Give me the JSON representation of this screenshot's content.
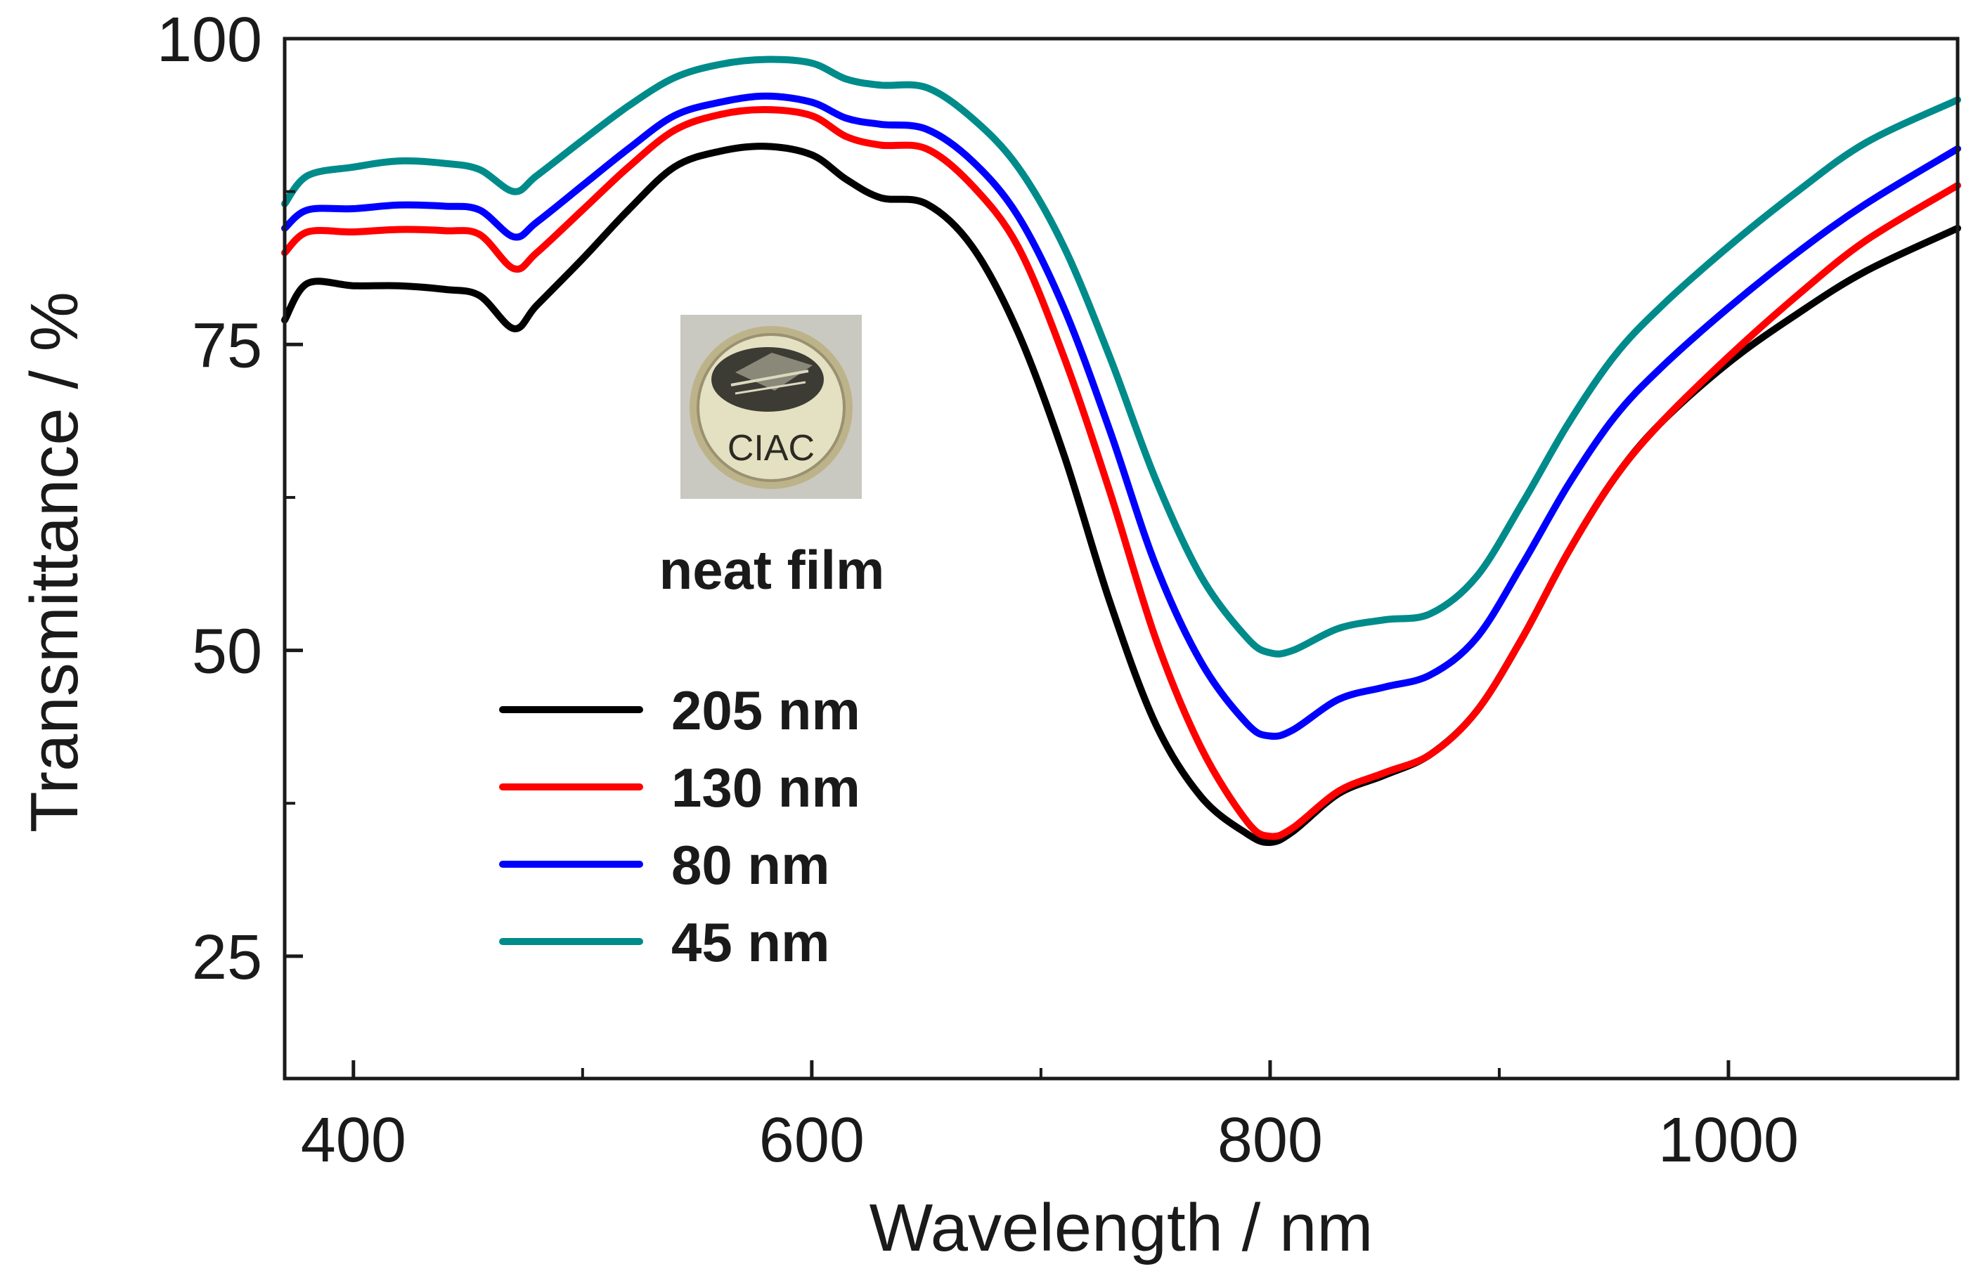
{
  "chart_data": {
    "type": "line",
    "title": "",
    "xlabel": "Wavelength / nm",
    "ylabel": "Transmittance / %",
    "xlim": [
      370,
      1100
    ],
    "ylim": [
      15,
      100
    ],
    "xticks": [
      400,
      600,
      800,
      1000
    ],
    "xticks_minor": [
      500,
      700,
      900
    ],
    "yticks": [
      25,
      50,
      75,
      100
    ],
    "grid": false,
    "legend_position": "lower-left",
    "annotation": "neat film",
    "inset_logo_text": "CIAC",
    "series": [
      {
        "name": "205 nm",
        "color": "#000000",
        "x": [
          370,
          380,
          400,
          420,
          440,
          455,
          470,
          480,
          500,
          520,
          540,
          560,
          580,
          600,
          615,
          630,
          650,
          670,
          690,
          710,
          730,
          750,
          770,
          790,
          800,
          810,
          830,
          850,
          870,
          890,
          910,
          930,
          950,
          970,
          1000,
          1030,
          1060,
          1100
        ],
        "values": [
          77,
          80,
          79.8,
          79.8,
          79.5,
          79,
          76.3,
          78.2,
          82,
          86,
          89.5,
          90.8,
          91.2,
          90.5,
          88.5,
          87,
          86.5,
          83,
          76,
          66,
          54,
          44,
          38,
          35,
          34.3,
          35.2,
          38.3,
          39.8,
          41.5,
          45,
          51,
          58,
          64,
          68.5,
          73.5,
          77.5,
          81,
          84.5
        ]
      },
      {
        "name": "130 nm",
        "color": "#ff0000",
        "x": [
          370,
          380,
          400,
          420,
          440,
          455,
          470,
          480,
          500,
          520,
          540,
          560,
          580,
          600,
          615,
          630,
          650,
          670,
          690,
          710,
          730,
          750,
          770,
          790,
          800,
          810,
          830,
          850,
          870,
          890,
          910,
          930,
          950,
          970,
          1000,
          1030,
          1060,
          1100
        ],
        "values": [
          82.5,
          84.2,
          84.2,
          84.4,
          84.3,
          84,
          81.2,
          82.5,
          86,
          89.5,
          92.5,
          93.8,
          94.2,
          93.7,
          92,
          91.3,
          91,
          88,
          83,
          74,
          63,
          51,
          42,
          36,
          34.8,
          35.5,
          38.5,
          40,
          41.5,
          45,
          51,
          58,
          64,
          68.5,
          74,
          79,
          83.5,
          88
        ]
      },
      {
        "name": "80 nm",
        "color": "#0000ff",
        "x": [
          370,
          380,
          400,
          420,
          440,
          455,
          470,
          480,
          500,
          520,
          540,
          560,
          580,
          600,
          615,
          630,
          650,
          670,
          690,
          710,
          730,
          750,
          770,
          790,
          800,
          810,
          830,
          850,
          870,
          890,
          910,
          930,
          950,
          970,
          1000,
          1030,
          1060,
          1100
        ],
        "values": [
          84.5,
          86,
          86.1,
          86.4,
          86.3,
          86,
          83.8,
          85,
          88,
          91,
          93.7,
          94.8,
          95.3,
          94.8,
          93.5,
          93,
          92.6,
          90,
          85.5,
          78,
          68,
          57,
          49,
          44,
          43,
          43.5,
          46,
          47,
          48,
          51,
          57,
          63.5,
          69,
          73,
          78,
          82.5,
          86.5,
          91
        ]
      },
      {
        "name": "45 nm",
        "color": "#008b8b",
        "x": [
          370,
          380,
          400,
          420,
          440,
          455,
          470,
          480,
          500,
          520,
          540,
          560,
          580,
          600,
          615,
          630,
          650,
          670,
          690,
          710,
          730,
          750,
          770,
          790,
          800,
          810,
          830,
          850,
          870,
          890,
          910,
          930,
          950,
          970,
          1000,
          1030,
          1060,
          1100
        ],
        "values": [
          86.5,
          88.8,
          89.5,
          90,
          89.8,
          89.3,
          87.5,
          88.8,
          91.7,
          94.5,
          96.8,
          97.9,
          98.3,
          98,
          96.7,
          96.2,
          96,
          93.5,
          89.5,
          83,
          74,
          64,
          56,
          51,
          49.8,
          50,
          51.8,
          52.5,
          53,
          56,
          62,
          68.5,
          74,
          78,
          83,
          87.5,
          91.5,
          95
        ]
      }
    ]
  }
}
